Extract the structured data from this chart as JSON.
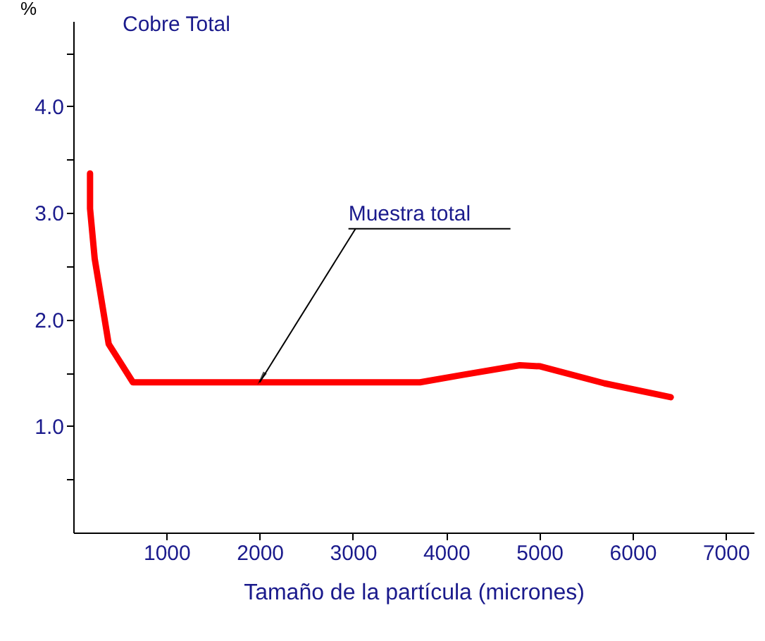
{
  "chart_data": {
    "type": "line",
    "title": "Cobre Total",
    "xlabel": "Tamaño de la partícula (micrones)",
    "ylabel": "%",
    "x": [
      180,
      180,
      230,
      380,
      640,
      1500,
      2500,
      3720,
      4180,
      4790,
      5010,
      5700,
      6410
    ],
    "series": [
      {
        "color": "#ff0000",
        "values": [
          3.37,
          3.04,
          2.57,
          1.77,
          1.41,
          1.41,
          1.41,
          1.41,
          1.48,
          1.57,
          1.56,
          1.4,
          1.27
        ]
      }
    ],
    "xlim": [
      0,
      7300
    ],
    "xticks": [
      1000,
      2000,
      3000,
      4000,
      5000,
      6000,
      7000
    ],
    "ylim": [
      0,
      4.8
    ],
    "yticks": [
      {
        "value": 0.5,
        "label": null
      },
      {
        "value": 1,
        "label": "1.0"
      },
      {
        "value": 1.5,
        "label": null
      },
      {
        "value": 2,
        "label": "2.0"
      },
      {
        "value": 2.5,
        "label": null
      },
      {
        "value": 3,
        "label": "3.0"
      },
      {
        "value": 3.5,
        "label": null
      },
      {
        "value": 4,
        "label": "4.0"
      },
      {
        "value": 4.5,
        "label": null
      }
    ],
    "annotations": [
      {
        "text": "Muestra total",
        "x": 2000,
        "y": 1.41
      }
    ],
    "grid": false,
    "marker": "none",
    "line_style": "solid"
  }
}
